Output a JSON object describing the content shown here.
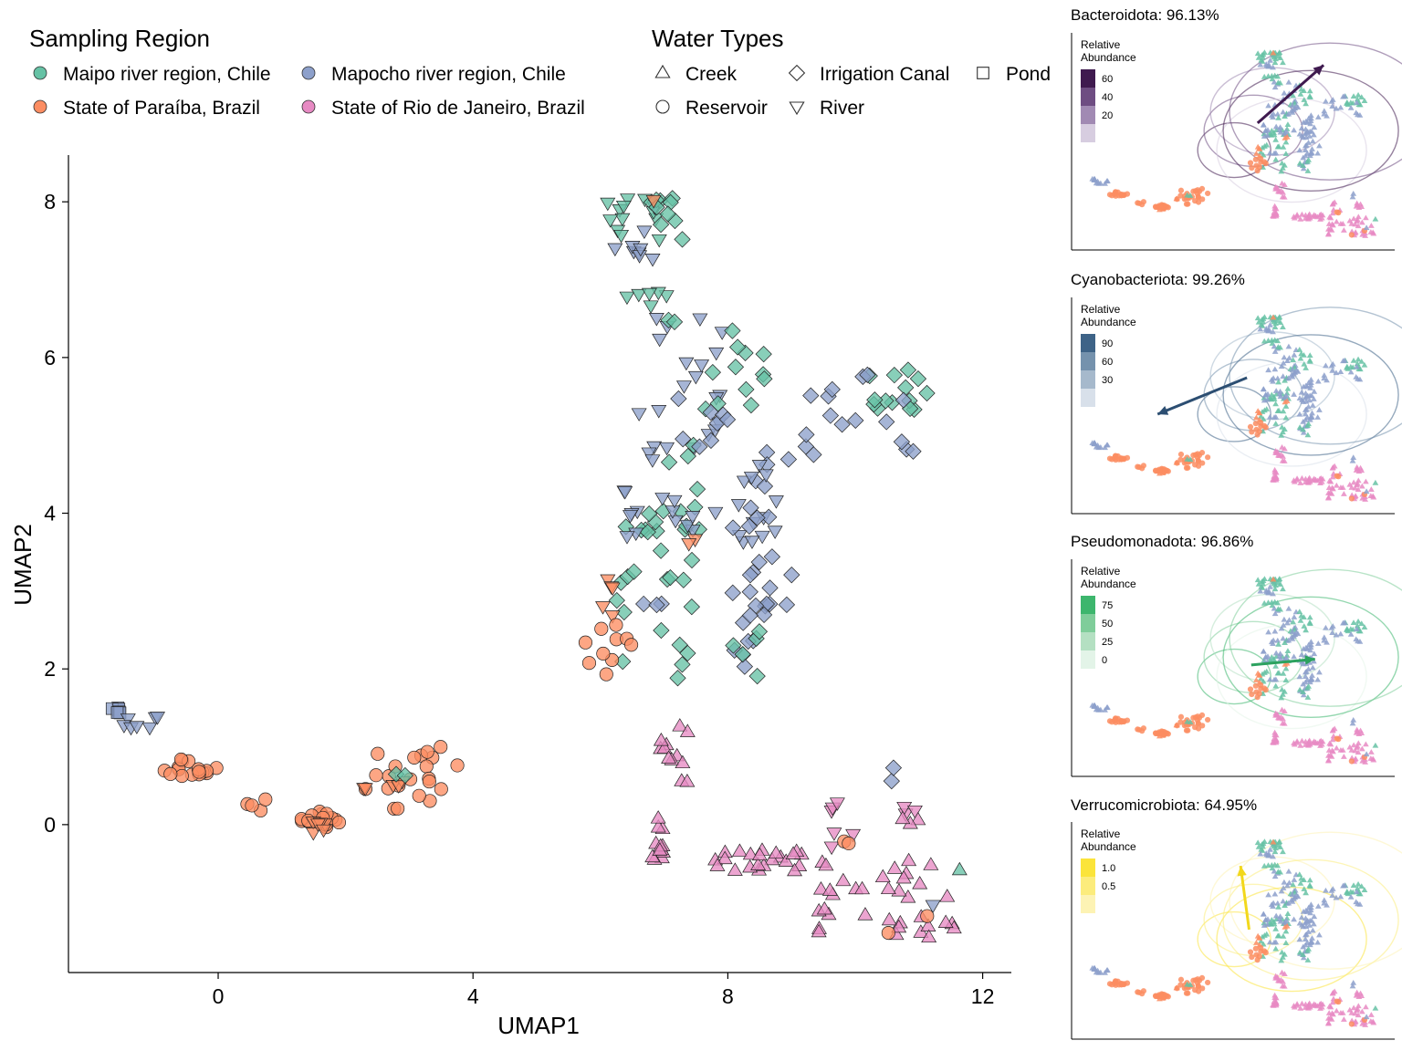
{
  "chart_data": [
    {
      "type": "scatter",
      "xlabel": "UMAP1",
      "ylabel": "UMAP2",
      "xlim": [
        -2.35,
        12.45
      ],
      "ylim": [
        -1.9,
        8.6
      ],
      "xticks": [
        0,
        4,
        8,
        12
      ],
      "yticks": [
        0,
        2,
        4,
        6,
        8
      ],
      "grid": false,
      "legend_region": {
        "title": "Sampling Region",
        "entries": [
          {
            "name": "Maipo river region, Chile",
            "color": "#66c2a5"
          },
          {
            "name": "Mapocho river region, Chile",
            "color": "#8da0cb"
          },
          {
            "name": "State of Paraíba, Brazil",
            "color": "#fc8d62"
          },
          {
            "name": "State of Rio de Janeiro, Brazil",
            "color": "#e78ac3"
          }
        ]
      },
      "legend_water": {
        "title": "Water Types",
        "entries": [
          {
            "name": "Creek",
            "shape": "triangle"
          },
          {
            "name": "Irrigation Canal",
            "shape": "diamond"
          },
          {
            "name": "Pond",
            "shape": "square"
          },
          {
            "name": "Reservoir",
            "shape": "circle"
          },
          {
            "name": "River",
            "shape": "triangle-down"
          }
        ]
      },
      "clusters": [
        {
          "region": 1,
          "shape": "square",
          "x0": -1.7,
          "x1": -1.5,
          "y0": 1.42,
          "y1": 1.5,
          "n": 8
        },
        {
          "region": 1,
          "shape": "triangle-down",
          "x0": -1.55,
          "x1": -0.9,
          "y0": 1.15,
          "y1": 1.42,
          "n": 7
        },
        {
          "region": 2,
          "shape": "circle",
          "x0": -1.0,
          "x1": 0.0,
          "y0": 0.62,
          "y1": 0.85,
          "n": 16
        },
        {
          "region": 2,
          "shape": "circle",
          "x0": 0.3,
          "x1": 0.85,
          "y0": 0.18,
          "y1": 0.48,
          "n": 4
        },
        {
          "region": 2,
          "shape": "circle",
          "x0": 1.3,
          "x1": 1.9,
          "y0": -0.12,
          "y1": 0.18,
          "n": 16
        },
        {
          "region": 2,
          "shape": "triangle-down",
          "x0": 1.45,
          "x1": 1.95,
          "y0": -0.15,
          "y1": 0.05,
          "n": 6
        },
        {
          "region": 2,
          "shape": "circle",
          "x0": 2.3,
          "x1": 3.8,
          "y0": 0.2,
          "y1": 1.0,
          "n": 22
        },
        {
          "region": 2,
          "shape": "triangle-down",
          "x0": 2.2,
          "x1": 3.1,
          "y0": 0.45,
          "y1": 0.6,
          "n": 5
        },
        {
          "region": 0,
          "shape": "diamond",
          "x0": 2.75,
          "x1": 2.95,
          "y0": 0.6,
          "y1": 0.7,
          "n": 2
        },
        {
          "region": 0,
          "shape": "triangle-down",
          "x0": 6.0,
          "x1": 7.2,
          "y0": 7.5,
          "y1": 8.05,
          "n": 12
        },
        {
          "region": 1,
          "shape": "triangle-down",
          "x0": 6.2,
          "x1": 6.9,
          "y0": 7.0,
          "y1": 8.0,
          "n": 9
        },
        {
          "region": 0,
          "shape": "diamond",
          "x0": 6.7,
          "x1": 7.3,
          "y0": 7.5,
          "y1": 8.05,
          "n": 10
        },
        {
          "region": 0,
          "shape": "triangle-down",
          "x0": 6.4,
          "x1": 7.1,
          "y0": 6.65,
          "y1": 6.85,
          "n": 6
        },
        {
          "region": 1,
          "shape": "triangle-down",
          "x0": 6.5,
          "x1": 8.2,
          "y0": 4.6,
          "y1": 6.7,
          "n": 22
        },
        {
          "region": 0,
          "shape": "diamond",
          "x0": 7.0,
          "x1": 8.6,
          "y0": 4.3,
          "y1": 6.5,
          "n": 18
        },
        {
          "region": 1,
          "shape": "diamond",
          "x0": 7.2,
          "x1": 8.0,
          "y0": 4.8,
          "y1": 5.8,
          "n": 8
        },
        {
          "region": 0,
          "shape": "diamond",
          "x0": 10.2,
          "x1": 11.2,
          "y0": 5.3,
          "y1": 5.85,
          "n": 14
        },
        {
          "region": 1,
          "shape": "diamond",
          "x0": 9.2,
          "x1": 11.1,
          "y0": 4.7,
          "y1": 5.85,
          "n": 16
        },
        {
          "region": 1,
          "shape": "diamond",
          "x0": 8.4,
          "x1": 9.0,
          "y0": 4.3,
          "y1": 4.8,
          "n": 5
        },
        {
          "region": 0,
          "shape": "diamond",
          "x0": 6.2,
          "x1": 7.6,
          "y0": 3.5,
          "y1": 4.1,
          "n": 14
        },
        {
          "region": 1,
          "shape": "triangle-down",
          "x0": 6.2,
          "x1": 7.5,
          "y0": 3.7,
          "y1": 4.4,
          "n": 14
        },
        {
          "region": 1,
          "shape": "triangle-down",
          "x0": 7.8,
          "x1": 8.8,
          "y0": 3.6,
          "y1": 4.7,
          "n": 14
        },
        {
          "region": 1,
          "shape": "diamond",
          "x0": 8.0,
          "x1": 9.1,
          "y0": 2.8,
          "y1": 4.1,
          "n": 16
        },
        {
          "region": 0,
          "shape": "diamond",
          "x0": 6.1,
          "x1": 7.6,
          "y0": 1.85,
          "y1": 3.4,
          "n": 16
        },
        {
          "region": 1,
          "shape": "diamond",
          "x0": 6.6,
          "x1": 7.0,
          "y0": 2.8,
          "y1": 2.9,
          "n": 3
        },
        {
          "region": 1,
          "shape": "diamond",
          "x0": 8.1,
          "x1": 8.6,
          "y0": 1.9,
          "y1": 3.0,
          "n": 10
        },
        {
          "region": 0,
          "shape": "diamond",
          "x0": 8.0,
          "x1": 8.5,
          "y0": 1.9,
          "y1": 2.5,
          "n": 5
        },
        {
          "region": 2,
          "shape": "triangle-down",
          "x0": 5.95,
          "x1": 6.2,
          "y0": 2.6,
          "y1": 3.3,
          "n": 5
        },
        {
          "region": 2,
          "shape": "circle",
          "x0": 5.65,
          "x1": 6.5,
          "y0": 1.8,
          "y1": 2.6,
          "n": 10
        },
        {
          "region": 2,
          "shape": "triangle-down",
          "x0": 7.35,
          "x1": 7.5,
          "y0": 3.3,
          "y1": 3.7,
          "n": 2
        },
        {
          "region": 3,
          "shape": "triangle",
          "x0": 6.9,
          "x1": 7.4,
          "y0": 0.5,
          "y1": 1.4,
          "n": 12
        },
        {
          "region": 3,
          "shape": "triangle",
          "x0": 6.8,
          "x1": 7.0,
          "y0": -0.5,
          "y1": 0.1,
          "n": 12
        },
        {
          "region": 3,
          "shape": "triangle",
          "x0": 7.8,
          "x1": 9.2,
          "y0": -0.6,
          "y1": -0.3,
          "n": 22
        },
        {
          "region": 3,
          "shape": "triangle",
          "x0": 9.4,
          "x1": 11.8,
          "y0": -1.45,
          "y1": -0.4,
          "n": 36
        },
        {
          "region": 3,
          "shape": "triangle-down",
          "x0": 9.6,
          "x1": 10.0,
          "y0": -0.3,
          "y1": 0.35,
          "n": 6
        },
        {
          "region": 3,
          "shape": "triangle-down",
          "x0": 10.6,
          "x1": 11.0,
          "y0": 0.1,
          "y1": 0.3,
          "n": 3
        },
        {
          "region": 3,
          "shape": "triangle",
          "x0": 10.7,
          "x1": 11.0,
          "y0": -0.1,
          "y1": 0.3,
          "n": 3
        },
        {
          "region": 1,
          "shape": "diamond",
          "x0": 10.5,
          "x1": 10.65,
          "y0": 0.55,
          "y1": 0.75,
          "n": 2
        },
        {
          "region": 2,
          "shape": "circle",
          "x0": 9.8,
          "x1": 9.9,
          "y0": -0.3,
          "y1": -0.15,
          "n": 2
        },
        {
          "region": 2,
          "shape": "circle",
          "x0": 11.1,
          "x1": 11.2,
          "y0": -1.25,
          "y1": -1.15,
          "n": 1
        },
        {
          "region": 2,
          "shape": "circle",
          "x0": 10.5,
          "x1": 10.6,
          "y0": -1.45,
          "y1": -1.35,
          "n": 1
        },
        {
          "region": 0,
          "shape": "triangle",
          "x0": 11.6,
          "x1": 11.7,
          "y0": -0.65,
          "y1": -0.55,
          "n": 1
        },
        {
          "region": 1,
          "shape": "triangle-down",
          "x0": 11.2,
          "x1": 11.3,
          "y0": -1.1,
          "y1": -1.0,
          "n": 1
        },
        {
          "region": 2,
          "shape": "triangle-down",
          "x0": 6.75,
          "x1": 6.85,
          "y0": 8.0,
          "y1": 8.1,
          "n": 1
        }
      ]
    },
    {
      "type": "scatter",
      "title": "Bacteroidota:  96.13%",
      "legend_title": "Relative Abundance",
      "legend_labels": [
        "60",
        "40",
        "20"
      ],
      "legend_colors": [
        "#3f1a4f",
        "#6e4d82",
        "#a18ab3",
        "#d7cde0"
      ],
      "arrow_color": "#3f1a4f",
      "arrow": {
        "x0": 6.1,
        "y0": 4.4,
        "x1": 9.2,
        "y1": 7.4
      }
    },
    {
      "type": "scatter",
      "title": "Cyanobacteriota:  99.26%",
      "legend_title": "Relative Abundance",
      "legend_labels": [
        "90",
        "60",
        "30"
      ],
      "legend_colors": [
        "#3e6387",
        "#7592ad",
        "#a6b9cc",
        "#d8e0ea"
      ],
      "arrow_color": "#2c4e72",
      "arrow": {
        "x0": 5.6,
        "y0": 4.9,
        "x1": 1.4,
        "y1": 3.0
      }
    },
    {
      "type": "scatter",
      "title": "Pseudomonadota:  96.86%",
      "legend_title": "Relative Abundance",
      "legend_labels": [
        "75",
        "50",
        "25",
        "0"
      ],
      "legend_colors": [
        "#3db66d",
        "#7fcd9a",
        "#b4e0c2",
        "#e3f4e8"
      ],
      "arrow_color": "#2ca25f",
      "arrow": {
        "x0": 5.8,
        "y0": 3.6,
        "x1": 8.8,
        "y1": 3.9
      }
    },
    {
      "type": "scatter",
      "title": "Verrucomicrobiota:  64.95%",
      "legend_title": "Relative Abundance",
      "legend_labels": [
        "1.0",
        "0.5"
      ],
      "legend_colors": [
        "#fbe43a",
        "#fcec7c",
        "#fdf3b4"
      ],
      "arrow_color": "#f2d81c",
      "arrow": {
        "x0": 5.7,
        "y0": 3.5,
        "x1": 5.3,
        "y1": 6.8
      }
    }
  ]
}
